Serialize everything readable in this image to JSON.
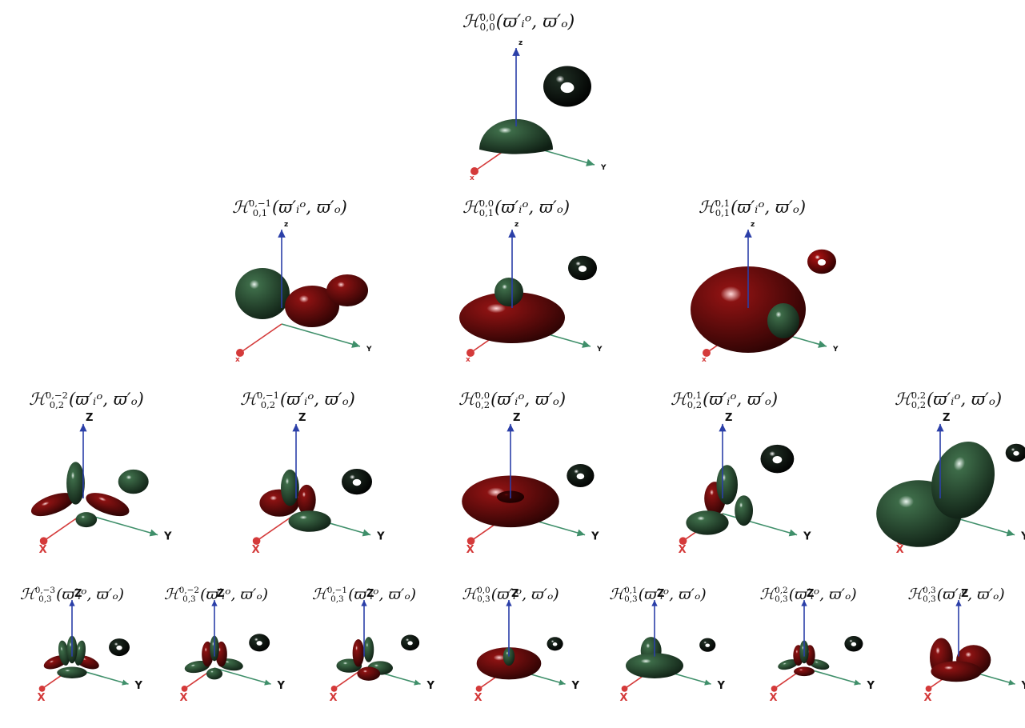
{
  "figure": {
    "rows": [
      {
        "order": 0,
        "items": [
          {
            "label_base": "ℋ",
            "sup": "0,0",
            "sub": "0,0",
            "args": "(ϖ′ᵢᵒ, ϖ′ₒ)",
            "axes": {
              "x": "x",
              "y": "Y",
              "z": "z"
            }
          }
        ]
      },
      {
        "order": 1,
        "items": [
          {
            "label_base": "ℋ",
            "sup": "0,−1",
            "sub": "0,1",
            "args": "(ϖ′ᵢᵒ, ϖ′ₒ)",
            "axes": {
              "x": "x",
              "y": "Y",
              "z": "z"
            }
          },
          {
            "label_base": "ℋ",
            "sup": "0,0",
            "sub": "0,1",
            "args": "(ϖ′ᵢᵒ, ϖ′ₒ)",
            "axes": {
              "x": "x",
              "y": "Y",
              "z": "z"
            }
          },
          {
            "label_base": "ℋ",
            "sup": "0,1",
            "sub": "0,1",
            "args": "(ϖ′ᵢᵒ, ϖ′ₒ)",
            "axes": {
              "x": "x",
              "y": "Y",
              "z": "z"
            }
          }
        ]
      },
      {
        "order": 2,
        "items": [
          {
            "label_base": "ℋ",
            "sup": "0,−2",
            "sub": "0,2",
            "args": "(ϖ′ᵢᵒ, ϖ′ₒ)",
            "axes": {
              "x": "X",
              "y": "Y",
              "z": "Z"
            }
          },
          {
            "label_base": "ℋ",
            "sup": "0,−1",
            "sub": "0,2",
            "args": "(ϖ′ᵢᵒ, ϖ′ₒ)",
            "axes": {
              "x": "X",
              "y": "Y",
              "z": "Z"
            }
          },
          {
            "label_base": "ℋ",
            "sup": "0,0",
            "sub": "0,2",
            "args": "(ϖ′ᵢᵒ, ϖ′ₒ)",
            "axes": {
              "x": "X",
              "y": "Y",
              "z": "Z"
            }
          },
          {
            "label_base": "ℋ",
            "sup": "0,1",
            "sub": "0,2",
            "args": "(ϖ′ᵢᵒ, ϖ′ₒ)",
            "axes": {
              "x": "X",
              "y": "Y",
              "z": "Z"
            }
          },
          {
            "label_base": "ℋ",
            "sup": "0,2",
            "sub": "0,2",
            "args": "(ϖ′ᵢᵒ, ϖ′ₒ)",
            "axes": {
              "x": "X",
              "y": "Y",
              "z": "Z"
            }
          }
        ]
      },
      {
        "order": 3,
        "items": [
          {
            "label_base": "ℋ",
            "sup": "0,−3",
            "sub": "0,3",
            "args": "(ϖ′ᵢᵒ, ϖ′ₒ)",
            "axes": {
              "x": "X",
              "y": "Y",
              "z": "Z"
            }
          },
          {
            "label_base": "ℋ",
            "sup": "0,−2",
            "sub": "0,3",
            "args": "(ϖ′ᵢᵒ, ϖ′ₒ)",
            "axes": {
              "x": "X",
              "y": "Y",
              "z": "Z"
            }
          },
          {
            "label_base": "ℋ",
            "sup": "0,−1",
            "sub": "0,3",
            "args": "(ϖ′ᵢᵒ, ϖ′ₒ)",
            "axes": {
              "x": "X",
              "y": "Y",
              "z": "Z"
            }
          },
          {
            "label_base": "ℋ",
            "sup": "0,0",
            "sub": "0,3",
            "args": "(ϖ′ᵢᵒ, ϖ′ₒ)",
            "axes": {
              "x": "X",
              "y": "Y",
              "z": "Z"
            }
          },
          {
            "label_base": "ℋ",
            "sup": "0,1",
            "sub": "0,3",
            "args": "(ϖ′ᵢᵒ, ϖ′ₒ)",
            "axes": {
              "x": "X",
              "y": "Y",
              "z": "Z"
            }
          },
          {
            "label_base": "ℋ",
            "sup": "0,2",
            "sub": "0,3",
            "args": "(ϖ′ᵢᵒ, ϖ′ₒ)",
            "axes": {
              "x": "X",
              "y": "Y",
              "z": "Z"
            }
          },
          {
            "label_base": "ℋ",
            "sup": "0,3",
            "sub": "0,3",
            "args": "(ϖ′ᵢᵒ, ϖ′ₒ)",
            "axes": {
              "x": "X",
              "y": "Y",
              "z": "Z"
            }
          }
        ]
      }
    ]
  },
  "colors": {
    "positive_lobe": "#3d6b48",
    "negative_lobe": "#8a1212",
    "x_axis": "#d43a3a",
    "y_axis": "#3f8f6a",
    "z_axis": "#2b3fa8",
    "highlight": "#ffffff",
    "background": "#ffffff"
  }
}
